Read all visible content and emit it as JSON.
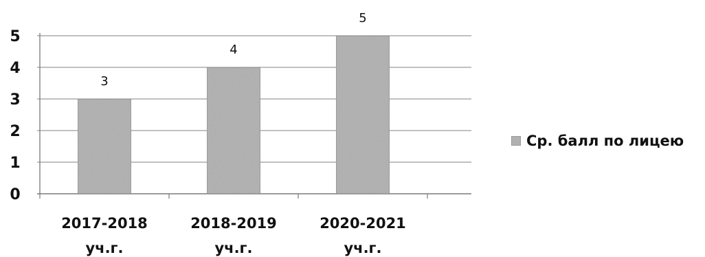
{
  "chart_data": {
    "type": "bar",
    "categories": [
      [
        "2017-2018",
        "уч.г."
      ],
      [
        "2018-2019",
        "уч.г."
      ],
      [
        "2020-2021",
        "уч.г."
      ]
    ],
    "series": [
      {
        "name": "Ср. балл по лицею",
        "values": [
          3,
          4,
          5
        ]
      }
    ],
    "ylim": [
      0,
      5
    ],
    "yticks": [
      0,
      1,
      2,
      3,
      4,
      5
    ],
    "grid": true,
    "legend_position": "right",
    "colors": {
      "bar_fill": "#b8b8b8",
      "bar_edge": "#8a8a8a",
      "grid": "#9a9a9a",
      "axis": "#7a7a7a",
      "text": "#111111"
    }
  }
}
